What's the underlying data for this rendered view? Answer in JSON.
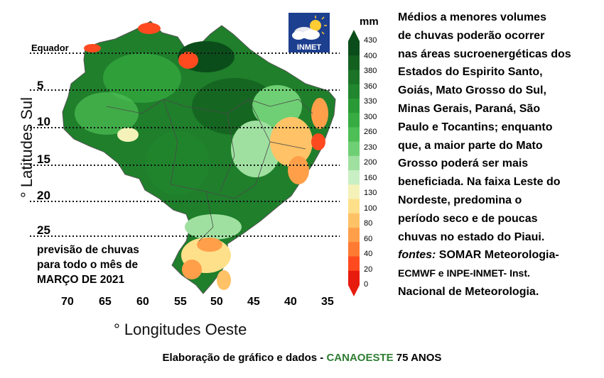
{
  "legend": {
    "unit": "mm",
    "ticks": [
      "430",
      "400",
      "380",
      "360",
      "330",
      "300",
      "260",
      "230",
      "200",
      "160",
      "130",
      "100",
      "80",
      "60",
      "40",
      "20",
      "0"
    ],
    "colors": [
      "#0b4d1a",
      "#13601f",
      "#1a7326",
      "#21862d",
      "#2a9a36",
      "#36ac42",
      "#4ebf56",
      "#6fcf74",
      "#9fe0a0",
      "#c9efc4",
      "#f4f2b8",
      "#ffe08a",
      "#ffc266",
      "#ff9f4a",
      "#ff7a33",
      "#ff4a1f",
      "#e81b0f"
    ]
  },
  "map": {
    "equator_label": "Equador",
    "latitude_labels": [
      "5",
      "10",
      "15",
      "20",
      "25"
    ],
    "longitude_labels": [
      "70",
      "65",
      "60",
      "55",
      "50",
      "45",
      "40",
      "35"
    ],
    "y_axis_title": "° Latitudes Sul",
    "x_axis_title": "° Longitudes Oeste"
  },
  "logo": {
    "text": "INMET"
  },
  "caption": {
    "line1": "previsão de chuvas",
    "line2": "para todo o mês de",
    "line3": "MARÇO DE 2021"
  },
  "side_text": {
    "line1": "Médios a menores volumes",
    "line2": "de chuvas poderão ocorrer",
    "line3": "nas áreas sucroenergéticas dos",
    "line4": "Estados do Espirito Santo,",
    "line5": "Goiás, Mato Grosso do Sul,",
    "line6": "Minas Gerais, Paraná, São",
    "line7": "Paulo e Tocantins; enquanto",
    "line8": "que, a maior parte do Mato",
    "line9": "Grosso poderá ser mais",
    "line10": "beneficiada. Na faixa Leste do",
    "line11": "Nordeste, predomina o",
    "line12": "período seco e de poucas",
    "line13": "chuvas no estado do Piaui.",
    "fontes_label": "fontes:",
    "line14_rest": " SOMAR Meteorologia-",
    "line15": "ECMWF e INPE-INMET-  Inst.",
    "line16": "Nacional de Meteorologia."
  },
  "footer": {
    "prefix": "Elaboração de gráfico e dados - ",
    "brand": "CANAOESTE",
    "suffix": " 75 ANOS"
  },
  "colors": {
    "dark_green": "#13601f",
    "green": "#2a9a36",
    "light_green": "#9fe0a0",
    "yellow": "#ffe08a",
    "orange": "#ff9f4a",
    "red": "#e81b0f",
    "brand_green": "#2e7d32"
  }
}
